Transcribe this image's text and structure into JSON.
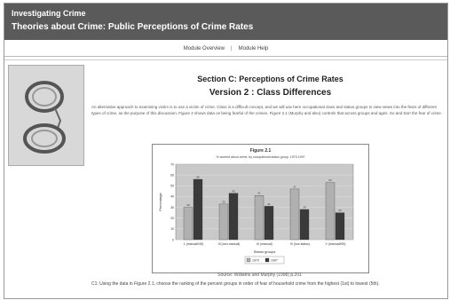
{
  "header": {
    "title": "Investigating Crime",
    "subtitle": "Theories about Crime: Public Perceptions of Crime Rates"
  },
  "nav": {
    "items": [
      "Module Overview",
      "Module Help"
    ]
  },
  "page": {
    "section_title": "Section C: Perceptions of Crime Rates",
    "version_title": "Version 2 : Class Differences"
  },
  "intro_text": "An alternative approach to examining victim is to use a victim of crime. Class is a difficult concept, and we will use here occupational class and status groups to view views into the fears of different types of crime, as the purpose of this discussion. Figure 2 shows data on being fearful of the crimes. Figure 2.1 (Murphy and also) controls that across groups and ages. So and Sarr the fear of crime.",
  "chart_data": {
    "type": "bar",
    "title": "Figure 2.1",
    "subtitle": "% worried about crime, by occupational status group, 1979-1997",
    "categories": [
      "1 (manual/NS)",
      "III (non-manual)",
      "III (manual)",
      "IV (low status)",
      "V (manual/NS)"
    ],
    "series": [
      {
        "name": "1979",
        "values": [
          30,
          33,
          41,
          47,
          53
        ]
      },
      {
        "name": "1997",
        "values": [
          56,
          43,
          31,
          28,
          25
        ]
      }
    ],
    "colors": [
      "#b0b0b0",
      "#3a3a3a"
    ],
    "ylim": [
      0,
      70
    ],
    "yticks": [
      0,
      10,
      20,
      30,
      40,
      50,
      60,
      70
    ],
    "ylabel": "Percentage",
    "xlabel": "Status groups",
    "legend": [
      "1979",
      "1997"
    ],
    "plot_bg": "#c9c9c9"
  },
  "caption": "Source: Williams and Murphy (1998) p.201",
  "question": "C1: Using the data in Figure 2.1, choose the ranking of the percent groups in order of fear of household crime from the highest (1st) to lowest (5th)."
}
